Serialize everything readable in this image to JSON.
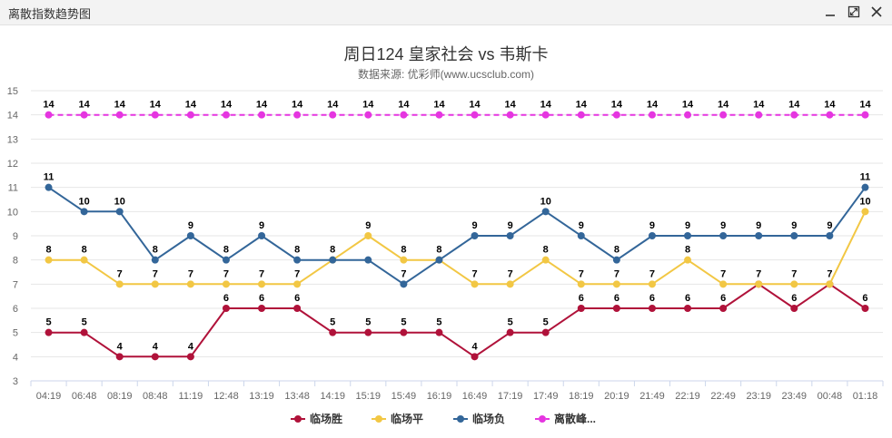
{
  "window": {
    "title": "离散指数趋势图"
  },
  "colors": {
    "win": "#b0123a",
    "draw": "#f2c744",
    "lose": "#336699",
    "peak": "#e535e0",
    "grid": "#e6e6e6",
    "axis_text": "#666666"
  },
  "icons": {
    "minimize": "minimize-icon",
    "maximize": "maximize-icon",
    "close": "close-icon"
  },
  "chart_data": {
    "type": "line",
    "title": "周日124 皇家社会 vs 韦斯卡",
    "subtitle": "数据来源: 优彩师(www.ucsclub.com)",
    "xlabel": "",
    "ylabel": "",
    "ylim": [
      3,
      15
    ],
    "yticks": [
      "3",
      "4",
      "5",
      "6",
      "7",
      "8",
      "9",
      "10",
      "11",
      "12",
      "13",
      "14",
      "15"
    ],
    "grid": true,
    "legend_position": "bottom",
    "categories": [
      "04:19",
      "06:48",
      "08:19",
      "08:48",
      "11:19",
      "12:48",
      "13:19",
      "13:48",
      "14:19",
      "15:19",
      "15:49",
      "16:19",
      "16:49",
      "17:19",
      "17:49",
      "18:19",
      "20:19",
      "21:49",
      "22:19",
      "22:49",
      "23:19",
      "23:49",
      "00:48",
      "01:18"
    ],
    "series": [
      {
        "name": "临场胜",
        "color": "#b0123a",
        "dashed": false,
        "values": [
          5,
          5,
          4,
          4,
          4,
          6,
          6,
          6,
          5,
          5,
          5,
          5,
          4,
          5,
          5,
          6,
          6,
          6,
          6,
          6,
          7,
          6,
          7,
          6
        ],
        "labels": [
          "5",
          "5",
          "4",
          "4",
          "4",
          "6",
          "6",
          "6",
          "5",
          "5",
          "5",
          "5",
          "4",
          "5",
          "5",
          "6",
          "6",
          "6",
          "6",
          "6",
          "",
          "6",
          "",
          "6"
        ]
      },
      {
        "name": "临场平",
        "color": "#f2c744",
        "dashed": false,
        "values": [
          8,
          8,
          7,
          7,
          7,
          7,
          7,
          7,
          8,
          9,
          8,
          8,
          7,
          7,
          8,
          7,
          7,
          7,
          8,
          7,
          7,
          7,
          7,
          10
        ],
        "labels": [
          "8",
          "8",
          "7",
          "7",
          "7",
          "7",
          "7",
          "7",
          "",
          "9",
          "8",
          "",
          "7",
          "7",
          "8",
          "7",
          "7",
          "7",
          "8",
          "7",
          "7",
          "7",
          "7",
          "10"
        ]
      },
      {
        "name": "临场负",
        "color": "#336699",
        "dashed": false,
        "values": [
          11,
          10,
          10,
          8,
          9,
          8,
          9,
          8,
          8,
          8,
          7,
          8,
          9,
          9,
          10,
          9,
          8,
          9,
          9,
          9,
          9,
          9,
          9,
          11
        ],
        "labels": [
          "11",
          "10",
          "10",
          "8",
          "9",
          "8",
          "9",
          "8",
          "8",
          "",
          "7",
          "8",
          "9",
          "9",
          "10",
          "9",
          "8",
          "9",
          "9",
          "9",
          "9",
          "9",
          "9",
          "11"
        ]
      },
      {
        "name": "离散峰...",
        "color": "#e535e0",
        "dashed": true,
        "values": [
          14,
          14,
          14,
          14,
          14,
          14,
          14,
          14,
          14,
          14,
          14,
          14,
          14,
          14,
          14,
          14,
          14,
          14,
          14,
          14,
          14,
          14,
          14,
          14
        ],
        "labels": [
          "14",
          "14",
          "14",
          "14",
          "14",
          "14",
          "14",
          "14",
          "14",
          "14",
          "14",
          "14",
          "14",
          "14",
          "14",
          "14",
          "14",
          "14",
          "14",
          "14",
          "14",
          "14",
          "14",
          "14"
        ]
      }
    ]
  }
}
